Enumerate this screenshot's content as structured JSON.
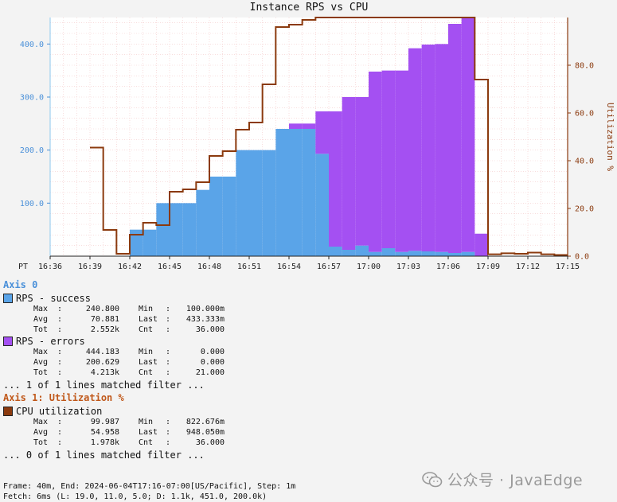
{
  "chart_data": {
    "type": "bar",
    "title": "Instance RPS vs CPU",
    "timezone_label": "PT",
    "x_start": "16:36",
    "x_step_minutes": 1,
    "x_end": "17:15",
    "x_ticks": [
      "16:36",
      "16:39",
      "16:42",
      "16:45",
      "16:48",
      "16:51",
      "16:54",
      "16:57",
      "17:00",
      "17:03",
      "17:06",
      "17:09",
      "17:12",
      "17:15"
    ],
    "y_left": {
      "ticks": [
        "100.0",
        "200.0",
        "300.0",
        "400.0"
      ],
      "tick_values": [
        100,
        200,
        300,
        400
      ],
      "range": [
        0,
        450
      ]
    },
    "y_right": {
      "label": "Utilization %",
      "ticks": [
        "0.0",
        "20.0",
        "40.0",
        "60.0",
        "80.0"
      ],
      "tick_values": [
        0,
        20,
        40,
        60,
        80
      ],
      "range": [
        0,
        100
      ]
    },
    "series": [
      {
        "name": "RPS - success",
        "kind": "stacked-area",
        "color": "#5aa4e8",
        "values": [
          0,
          0,
          0,
          0.1,
          0.1,
          0.1,
          50,
          50,
          100,
          100,
          100,
          125,
          150,
          150,
          200,
          200,
          200,
          240,
          240,
          240,
          193,
          18,
          12,
          20,
          8,
          15,
          8,
          10,
          9,
          8,
          6,
          8,
          0.4,
          0.4,
          0.4,
          0.4,
          0.4,
          0.4,
          0.4,
          0.4
        ]
      },
      {
        "name": "RPS - errors",
        "kind": "stacked-area",
        "color": "#a450f2",
        "values": [
          0,
          0,
          0,
          0,
          0,
          0,
          0,
          0,
          0,
          0,
          0,
          0,
          0,
          0,
          0,
          0,
          0,
          0,
          10,
          10,
          80,
          255,
          288,
          280,
          340,
          335,
          342,
          382,
          390,
          392,
          432,
          442,
          42,
          0,
          0,
          0,
          0,
          0,
          0,
          0
        ]
      },
      {
        "name": "CPU utilization",
        "kind": "step-line",
        "axis": "right",
        "color": "#8b3a0e",
        "values": [
          null,
          null,
          null,
          45.5,
          11,
          1,
          9,
          14,
          13,
          27,
          28,
          31,
          42,
          44,
          53,
          56,
          72,
          96,
          97,
          99,
          100,
          100,
          100,
          100,
          100,
          100,
          100,
          100,
          100,
          100,
          100,
          100,
          74,
          0.8,
          1.2,
          1.0,
          1.5,
          0.8,
          0.5,
          0.5
        ]
      }
    ]
  },
  "legend": {
    "axis0_label": "Axis 0",
    "axis1_label": "Axis 1: Utilization %",
    "success": {
      "name": "RPS - success",
      "color": "#5aa4e8",
      "max_k": "Max",
      "max": "240.800",
      "min_k": "Min",
      "min": "100.000m",
      "avg_k": "Avg",
      "avg": "70.881",
      "last_k": "Last",
      "last": "433.333m",
      "tot_k": "Tot",
      "tot": "2.552k",
      "cnt_k": "Cnt",
      "cnt": "36.000"
    },
    "errors": {
      "name": "RPS - errors",
      "color": "#a450f2",
      "max_k": "Max",
      "max": "444.183",
      "min_k": "Min",
      "min": "0.000",
      "avg_k": "Avg",
      "avg": "200.629",
      "last_k": "Last",
      "last": "0.000",
      "tot_k": "Tot",
      "tot": "4.213k",
      "cnt_k": "Cnt",
      "cnt": "21.000"
    },
    "axis0_matched": "... 1 of 1 lines matched filter ...",
    "cpu": {
      "name": "CPU utilization",
      "color": "#8b3a0e",
      "max_k": "Max",
      "max": "99.987",
      "min_k": "Min",
      "min": "822.676m",
      "avg_k": "Avg",
      "avg": "54.958",
      "last_k": "Last",
      "last": "948.050m",
      "tot_k": "Tot",
      "tot": "1.978k",
      "cnt_k": "Cnt",
      "cnt": "36.000"
    },
    "axis1_matched": "... 0 of 1 lines matched filter ..."
  },
  "footer": {
    "line1": "Frame: 40m, End: 2024-06-04T17:16-07:00[US/Pacific], Step: 1m",
    "line2": "Fetch: 6ms (L: 19.0, 11.0, 5.0; D: 1.1k, 451.0, 200.0k)"
  },
  "watermark": {
    "text": "公众号 · JavaEdge",
    "icon": "wechat-icon"
  }
}
